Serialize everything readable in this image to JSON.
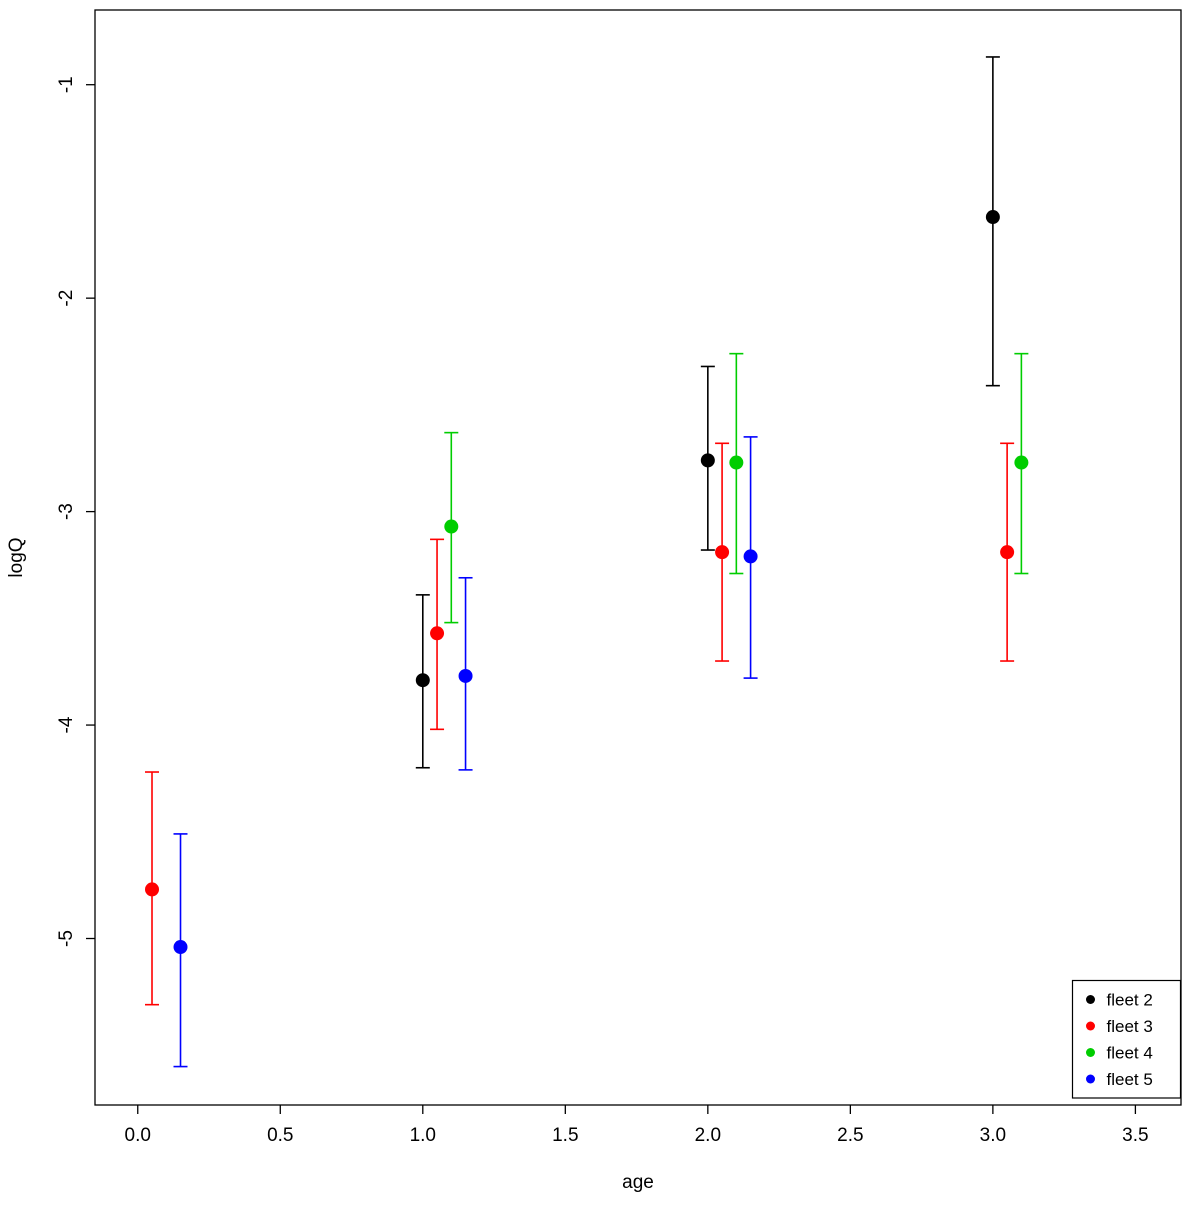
{
  "chart_data": {
    "type": "scatter",
    "title": "",
    "xlabel": "age",
    "ylabel": "logQ",
    "grid": false,
    "error_bars": true,
    "legend_position": "bottom-right",
    "xlim": [
      -0.15,
      3.66
    ],
    "ylim": [
      -5.78,
      -0.65
    ],
    "x_ticks": [
      0.0,
      0.5,
      1.0,
      1.5,
      2.0,
      2.5,
      3.0,
      3.5
    ],
    "x_tick_labels": [
      "0.0",
      "0.5",
      "1.0",
      "1.5",
      "2.0",
      "2.5",
      "3.0",
      "3.5"
    ],
    "y_ticks": [
      -1,
      -2,
      -3,
      -4,
      -5
    ],
    "y_tick_labels": [
      "-1",
      "-2",
      "-3",
      "-4",
      "-5"
    ],
    "series": [
      {
        "name": "fleet 2",
        "color": "#000000",
        "points": [
          {
            "x": 1.0,
            "y": -3.79,
            "lo": -4.2,
            "hi": -3.39
          },
          {
            "x": 2.0,
            "y": -2.76,
            "lo": -3.18,
            "hi": -2.32
          },
          {
            "x": 3.0,
            "y": -1.62,
            "lo": -2.41,
            "hi": -0.87
          }
        ]
      },
      {
        "name": "fleet 3",
        "color": "#FF0000",
        "points": [
          {
            "x": 0.05,
            "y": -4.77,
            "lo": -5.31,
            "hi": -4.22
          },
          {
            "x": 1.05,
            "y": -3.57,
            "lo": -4.02,
            "hi": -3.13
          },
          {
            "x": 2.05,
            "y": -3.19,
            "lo": -3.7,
            "hi": -2.68
          },
          {
            "x": 3.05,
            "y": -3.19,
            "lo": -3.7,
            "hi": -2.68
          }
        ]
      },
      {
        "name": "fleet 4",
        "color": "#00CD00",
        "points": [
          {
            "x": 1.1,
            "y": -3.07,
            "lo": -3.52,
            "hi": -2.63
          },
          {
            "x": 2.1,
            "y": -2.77,
            "lo": -3.29,
            "hi": -2.26
          },
          {
            "x": 3.1,
            "y": -2.77,
            "lo": -3.29,
            "hi": -2.26
          }
        ]
      },
      {
        "name": "fleet 5",
        "color": "#0000FF",
        "points": [
          {
            "x": 0.15,
            "y": -5.04,
            "lo": -5.6,
            "hi": -4.51
          },
          {
            "x": 1.15,
            "y": -3.77,
            "lo": -4.21,
            "hi": -3.31
          },
          {
            "x": 2.15,
            "y": -3.21,
            "lo": -3.78,
            "hi": -2.65
          }
        ]
      }
    ],
    "legend": {
      "entries": [
        {
          "label": "fleet 2",
          "color": "#000000"
        },
        {
          "label": "fleet 3",
          "color": "#FF0000"
        },
        {
          "label": "fleet 4",
          "color": "#00CD00"
        },
        {
          "label": "fleet 5",
          "color": "#0000FF"
        }
      ]
    }
  }
}
